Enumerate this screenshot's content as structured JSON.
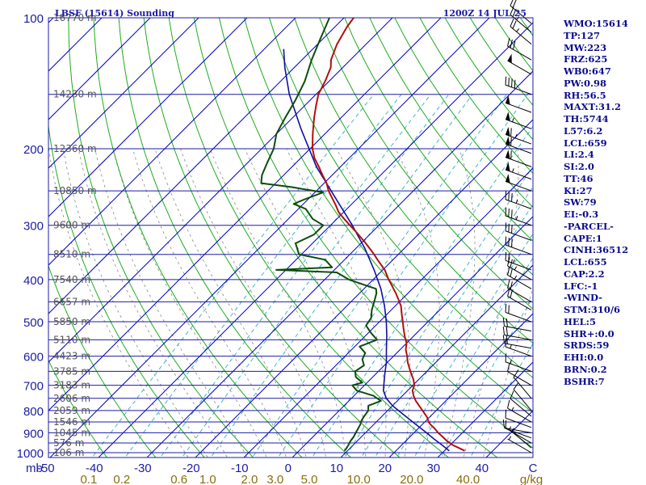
{
  "header": {
    "title": "LBSF (15614) Sounding",
    "time": "1200Z 14 JUL 25"
  },
  "colors": {
    "isobar": "#1c1ca6",
    "isotherm": "#0000c8",
    "dry_adiabat": "#1cac1c",
    "moist_adiabat": "#888888",
    "mixing_ratio": "#3fb4c8",
    "temperature": "#b30f0f",
    "dewpoint": "#0c4c0c",
    "parcel": "#1010a0",
    "label_yellow": "#8a6c0a",
    "label_blue": "#1c1ca6",
    "label_gray": "#555555"
  },
  "indices": [
    "WMO:15614",
    "TP:127",
    "MW:223",
    "FRZ:625",
    "WB0:647",
    "PW:0.98",
    "RH:56.5",
    "MAXT:31.2",
    "TH:5744",
    "L57:6.2",
    "LCL:659",
    "LI:2.4",
    "SI:2.0",
    "TT:46",
    "KI:27",
    "SW:79",
    "EI:-0.3",
    "-PARCEL-",
    "CAPE:1",
    "CINH:36512",
    "LCL:655",
    "CAP:2.2",
    "LFC:-1",
    "-WIND-",
    "STM:310/6",
    "HEL:5",
    "SHR+:0.0",
    "SRDS:59",
    "EHI:0.0",
    "BRN:0.2",
    "BSHR:7"
  ],
  "chart_data": {
    "type": "skew-t",
    "title": "LBSF (15614) Sounding",
    "xlabel": "C",
    "x_unit_corner": "mb",
    "mixing_ratio_unit": "g/kg",
    "pressure_labels": [
      {
        "p": 100,
        "text": "100"
      },
      {
        "p": 200,
        "text": "200"
      },
      {
        "p": 300,
        "text": "300"
      },
      {
        "p": 400,
        "text": "400"
      },
      {
        "p": 500,
        "text": "500"
      },
      {
        "p": 600,
        "text": "600"
      },
      {
        "p": 700,
        "text": "700"
      },
      {
        "p": 800,
        "text": "800"
      },
      {
        "p": 900,
        "text": "900"
      },
      {
        "p": 1000,
        "text": "1000"
      }
    ],
    "height_labels": [
      {
        "p": 100,
        "text": "16770 m"
      },
      {
        "p": 150,
        "text": "14230 m"
      },
      {
        "p": 200,
        "text": "12360 m"
      },
      {
        "p": 250,
        "text": "10850 m"
      },
      {
        "p": 300,
        "text": "9600 m"
      },
      {
        "p": 350,
        "text": "8510 m"
      },
      {
        "p": 400,
        "text": "7540 m"
      },
      {
        "p": 450,
        "text": "6657 m"
      },
      {
        "p": 500,
        "text": "5850 m"
      },
      {
        "p": 550,
        "text": "5110 m"
      },
      {
        "p": 600,
        "text": "4423 m"
      },
      {
        "p": 650,
        "text": "3785 m"
      },
      {
        "p": 700,
        "text": "3183 m"
      },
      {
        "p": 750,
        "text": "2606 m"
      },
      {
        "p": 800,
        "text": "2059 m"
      },
      {
        "p": 850,
        "text": "1546 m"
      },
      {
        "p": 900,
        "text": "1045 m"
      },
      {
        "p": 950,
        "text": "576 m"
      },
      {
        "p": 1000,
        "text": "106 m"
      }
    ],
    "temperature_ticks": [
      {
        "t": -50,
        "text": "-50"
      },
      {
        "t": -40,
        "text": "-40"
      },
      {
        "t": -30,
        "text": "-30"
      },
      {
        "t": -20,
        "text": "-20"
      },
      {
        "t": -10,
        "text": "-10"
      },
      {
        "t": 0,
        "text": "0"
      },
      {
        "t": 10,
        "text": "10"
      },
      {
        "t": 20,
        "text": "20"
      },
      {
        "t": 30,
        "text": "30"
      },
      {
        "t": 40,
        "text": "40"
      }
    ],
    "mixing_ratio_labels": [
      {
        "w": 0.1,
        "text": "0.1"
      },
      {
        "w": 0.2,
        "text": "0.2"
      },
      {
        "w": 0.6,
        "text": "0.6"
      },
      {
        "w": 1.0,
        "text": "1.0"
      },
      {
        "w": 2.0,
        "text": "2.0"
      },
      {
        "w": 3.0,
        "text": "3.0"
      },
      {
        "w": 5.0,
        "text": "5.0"
      },
      {
        "w": 10.0,
        "text": "10.0"
      },
      {
        "w": 20.0,
        "text": "20.0"
      },
      {
        "w": 40.0,
        "text": "40.0"
      }
    ],
    "xlim": [
      -50,
      50
    ],
    "ylim": [
      1050,
      100
    ],
    "y_scale": "log",
    "temperature_profile": [
      {
        "p": 990,
        "t": 34.2
      },
      {
        "p": 980,
        "t": 33.0
      },
      {
        "p": 960,
        "t": 30.5
      },
      {
        "p": 940,
        "t": 28.5
      },
      {
        "p": 920,
        "t": 26.8
      },
      {
        "p": 900,
        "t": 25.0
      },
      {
        "p": 880,
        "t": 23.4
      },
      {
        "p": 860,
        "t": 21.6
      },
      {
        "p": 850,
        "t": 20.8
      },
      {
        "p": 830,
        "t": 19.6
      },
      {
        "p": 800,
        "t": 17.2
      },
      {
        "p": 780,
        "t": 15.5
      },
      {
        "p": 760,
        "t": 13.8
      },
      {
        "p": 740,
        "t": 12.3
      },
      {
        "p": 720,
        "t": 11.0
      },
      {
        "p": 700,
        "t": 10.3
      },
      {
        "p": 680,
        "t": 9.0
      },
      {
        "p": 660,
        "t": 7.4
      },
      {
        "p": 640,
        "t": 5.8
      },
      {
        "p": 620,
        "t": 4.2
      },
      {
        "p": 600,
        "t": 2.8
      },
      {
        "p": 580,
        "t": 1.2
      },
      {
        "p": 560,
        "t": 0.0
      },
      {
        "p": 540,
        "t": -1.8
      },
      {
        "p": 520,
        "t": -3.5
      },
      {
        "p": 500,
        "t": -5.2
      },
      {
        "p": 480,
        "t": -7.0
      },
      {
        "p": 460,
        "t": -8.8
      },
      {
        "p": 450,
        "t": -10.0
      },
      {
        "p": 430,
        "t": -12.5
      },
      {
        "p": 410,
        "t": -15.3
      },
      {
        "p": 400,
        "t": -16.8
      },
      {
        "p": 380,
        "t": -19.6
      },
      {
        "p": 360,
        "t": -23.2
      },
      {
        "p": 350,
        "t": -25.0
      },
      {
        "p": 330,
        "t": -29.0
      },
      {
        "p": 310,
        "t": -33.5
      },
      {
        "p": 300,
        "t": -36.0
      },
      {
        "p": 290,
        "t": -38.5
      },
      {
        "p": 280,
        "t": -41.0
      },
      {
        "p": 270,
        "t": -43.0
      },
      {
        "p": 260,
        "t": -45.2
      },
      {
        "p": 250,
        "t": -47.5
      },
      {
        "p": 240,
        "t": -49.5
      },
      {
        "p": 230,
        "t": -52.0
      },
      {
        "p": 220,
        "t": -54.5
      },
      {
        "p": 210,
        "t": -57.2
      },
      {
        "p": 200,
        "t": -59.5
      },
      {
        "p": 185,
        "t": -62.5
      },
      {
        "p": 170,
        "t": -65.5
      },
      {
        "p": 160,
        "t": -67.5
      },
      {
        "p": 150,
        "t": -69.5
      },
      {
        "p": 140,
        "t": -70.8
      },
      {
        "p": 130,
        "t": -72.5
      },
      {
        "p": 125,
        "t": -74.0
      },
      {
        "p": 115,
        "t": -76.0
      },
      {
        "p": 105,
        "t": -77.5
      },
      {
        "p": 100,
        "t": -78.0
      }
    ],
    "dewpoint_profile": [
      {
        "p": 990,
        "t": 9.4
      },
      {
        "p": 980,
        "t": 9.3
      },
      {
        "p": 960,
        "t": 9.0
      },
      {
        "p": 940,
        "t": 8.6
      },
      {
        "p": 920,
        "t": 8.4
      },
      {
        "p": 900,
        "t": 8.0
      },
      {
        "p": 880,
        "t": 7.6
      },
      {
        "p": 860,
        "t": 7.2
      },
      {
        "p": 850,
        "t": 6.8
      },
      {
        "p": 830,
        "t": 6.4
      },
      {
        "p": 800,
        "t": 6.0
      },
      {
        "p": 780,
        "t": 5.0
      },
      {
        "p": 760,
        "t": 6.6
      },
      {
        "p": 740,
        "t": 4.0
      },
      {
        "p": 720,
        "t": -0.5
      },
      {
        "p": 700,
        "t": -2.5
      },
      {
        "p": 690,
        "t": -1.0
      },
      {
        "p": 670,
        "t": -3.5
      },
      {
        "p": 650,
        "t": -4.8
      },
      {
        "p": 630,
        "t": -4.2
      },
      {
        "p": 610,
        "t": -5.8
      },
      {
        "p": 590,
        "t": -6.5
      },
      {
        "p": 570,
        "t": -9.0
      },
      {
        "p": 550,
        "t": -6.8
      },
      {
        "p": 530,
        "t": -9.5
      },
      {
        "p": 510,
        "t": -12.0
      },
      {
        "p": 490,
        "t": -12.5
      },
      {
        "p": 470,
        "t": -14.0
      },
      {
        "p": 450,
        "t": -15.2
      },
      {
        "p": 430,
        "t": -16.5
      },
      {
        "p": 420,
        "t": -17.5
      },
      {
        "p": 400,
        "t": -25.0
      },
      {
        "p": 385,
        "t": -29.0
      },
      {
        "p": 380,
        "t": -42.0
      },
      {
        "p": 375,
        "t": -31.0
      },
      {
        "p": 360,
        "t": -34.0
      },
      {
        "p": 350,
        "t": -40.5
      },
      {
        "p": 330,
        "t": -43.5
      },
      {
        "p": 315,
        "t": -41.5
      },
      {
        "p": 300,
        "t": -41.5
      },
      {
        "p": 290,
        "t": -45.0
      },
      {
        "p": 275,
        "t": -48.5
      },
      {
        "p": 268,
        "t": -52.0
      },
      {
        "p": 262,
        "t": -50.8
      },
      {
        "p": 252,
        "t": -48.3
      },
      {
        "p": 245,
        "t": -56.0
      },
      {
        "p": 240,
        "t": -63.0
      },
      {
        "p": 230,
        "t": -64.5
      },
      {
        "p": 215,
        "t": -66.0
      },
      {
        "p": 200,
        "t": -67.5
      },
      {
        "p": 185,
        "t": -70.0
      },
      {
        "p": 170,
        "t": -71.5
      },
      {
        "p": 155,
        "t": -73.0
      },
      {
        "p": 140,
        "t": -75.0
      },
      {
        "p": 125,
        "t": -78.0
      },
      {
        "p": 112,
        "t": -80.5
      },
      {
        "p": 100,
        "t": -83.0
      }
    ],
    "parcel_profile": [
      {
        "p": 990,
        "t": 31.0
      },
      {
        "p": 960,
        "t": 28.3
      },
      {
        "p": 930,
        "t": 25.4
      },
      {
        "p": 900,
        "t": 22.6
      },
      {
        "p": 870,
        "t": 19.6
      },
      {
        "p": 840,
        "t": 16.5
      },
      {
        "p": 810,
        "t": 13.3
      },
      {
        "p": 780,
        "t": 10.0
      },
      {
        "p": 750,
        "t": 7.2
      },
      {
        "p": 720,
        "t": 5.0
      },
      {
        "p": 700,
        "t": 4.0
      },
      {
        "p": 660,
        "t": 1.9
      },
      {
        "p": 620,
        "t": -0.2
      },
      {
        "p": 580,
        "t": -2.8
      },
      {
        "p": 540,
        "t": -5.5
      },
      {
        "p": 500,
        "t": -8.6
      },
      {
        "p": 460,
        "t": -12.2
      },
      {
        "p": 420,
        "t": -16.5
      },
      {
        "p": 380,
        "t": -21.8
      },
      {
        "p": 340,
        "t": -28.0
      },
      {
        "p": 300,
        "t": -35.5
      },
      {
        "p": 260,
        "t": -44.5
      },
      {
        "p": 220,
        "t": -55.0
      },
      {
        "p": 180,
        "t": -66.0
      },
      {
        "p": 150,
        "t": -75.5
      },
      {
        "p": 130,
        "t": -82.0
      },
      {
        "p": 118,
        "t": -86.0
      }
    ],
    "wind_profile": [
      {
        "p": 1000,
        "dir": 300,
        "spd": 5
      },
      {
        "p": 975,
        "dir": 310,
        "spd": 5
      },
      {
        "p": 950,
        "dir": 300,
        "spd": 5
      },
      {
        "p": 925,
        "dir": 290,
        "spd": 10
      },
      {
        "p": 900,
        "dir": 280,
        "spd": 10
      },
      {
        "p": 875,
        "dir": 290,
        "spd": 10
      },
      {
        "p": 850,
        "dir": 300,
        "spd": 15
      },
      {
        "p": 825,
        "dir": 310,
        "spd": 10
      },
      {
        "p": 800,
        "dir": 320,
        "spd": 10
      },
      {
        "p": 750,
        "dir": 320,
        "spd": 10
      },
      {
        "p": 700,
        "dir": 300,
        "spd": 10
      },
      {
        "p": 650,
        "dir": 290,
        "spd": 15
      },
      {
        "p": 600,
        "dir": 290,
        "spd": 15
      },
      {
        "p": 575,
        "dir": 280,
        "spd": 20
      },
      {
        "p": 550,
        "dir": 280,
        "spd": 20
      },
      {
        "p": 525,
        "dir": 280,
        "spd": 20
      },
      {
        "p": 500,
        "dir": 290,
        "spd": 20
      },
      {
        "p": 470,
        "dir": 300,
        "spd": 20
      },
      {
        "p": 450,
        "dir": 300,
        "spd": 20
      },
      {
        "p": 420,
        "dir": 300,
        "spd": 25
      },
      {
        "p": 400,
        "dir": 300,
        "spd": 25
      },
      {
        "p": 380,
        "dir": 290,
        "spd": 25
      },
      {
        "p": 350,
        "dir": 290,
        "spd": 30
      },
      {
        "p": 325,
        "dir": 290,
        "spd": 30
      },
      {
        "p": 300,
        "dir": 290,
        "spd": 35
      },
      {
        "p": 275,
        "dir": 290,
        "spd": 35
      },
      {
        "p": 250,
        "dir": 290,
        "spd": 50
      },
      {
        "p": 235,
        "dir": 290,
        "spd": 55
      },
      {
        "p": 220,
        "dir": 290,
        "spd": 60
      },
      {
        "p": 205,
        "dir": 290,
        "spd": 60
      },
      {
        "p": 195,
        "dir": 290,
        "spd": 65
      },
      {
        "p": 180,
        "dir": 290,
        "spd": 55
      },
      {
        "p": 165,
        "dir": 290,
        "spd": 50
      },
      {
        "p": 150,
        "dir": 290,
        "spd": 40
      },
      {
        "p": 135,
        "dir": 300,
        "spd": 50
      },
      {
        "p": 125,
        "dir": 300,
        "spd": 30
      },
      {
        "p": 115,
        "dir": 310,
        "spd": 25
      },
      {
        "p": 108,
        "dir": 310,
        "spd": 25
      },
      {
        "p": 103,
        "dir": 310,
        "spd": 20
      }
    ]
  }
}
